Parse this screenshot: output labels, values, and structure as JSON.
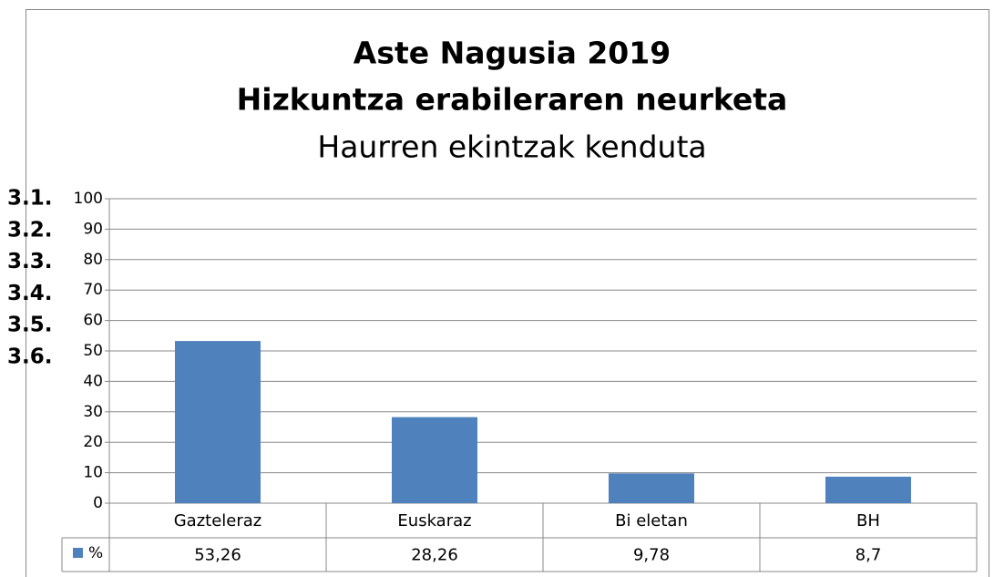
{
  "overlay_labels": [
    "3.1.",
    "3.2.",
    "3.3.",
    "3.4.",
    "3.5.",
    "3.6."
  ],
  "chart_data": {
    "type": "bar",
    "title": "Aste Nagusia 2019",
    "subtitle": "Hizkuntza erabileraren neurketa",
    "subtitle2": "Haurren ekintzak kenduta",
    "categories": [
      "Gazteleraz",
      "Euskaraz",
      "Bi eletan",
      "BH"
    ],
    "series": [
      {
        "name": "%",
        "color": "#4f81bd",
        "values": [
          53.26,
          28.26,
          9.78,
          8.7
        ],
        "value_labels": [
          "53,26",
          "28,26",
          "9,78",
          "8,7"
        ]
      }
    ],
    "ylim": [
      0,
      100
    ],
    "yticks": [
      0,
      10,
      20,
      30,
      40,
      50,
      60,
      70,
      80,
      90,
      100
    ],
    "grid": true,
    "data_table": true
  }
}
